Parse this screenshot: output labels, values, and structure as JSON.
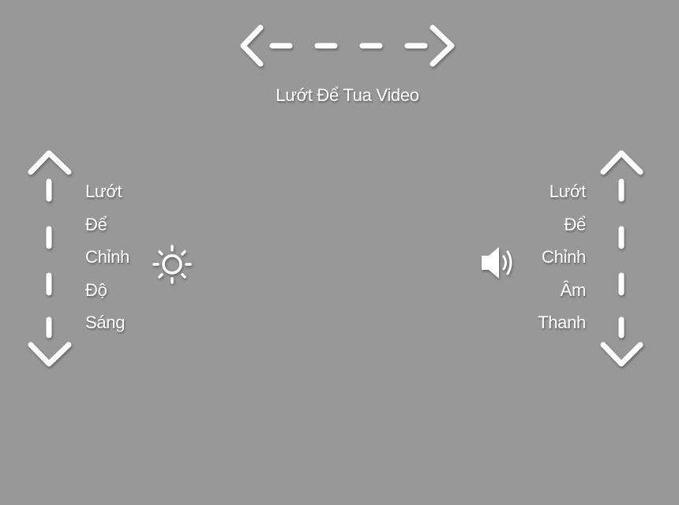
{
  "overlay": {
    "seek_hint": "Lướt Để  Tua Video",
    "brightness_words": [
      "Lướt",
      "Để",
      "Chỉnh",
      "Độ",
      "Sáng"
    ],
    "volume_words": [
      "Lướt",
      "Để",
      "Chỉnh",
      "Âm",
      "Thanh"
    ]
  },
  "icons": {
    "seek": "horizontal-swipe-arrow-icon",
    "brightness_arrow": "vertical-swipe-arrow-icon",
    "brightness": "sun-icon",
    "volume_arrow": "vertical-swipe-arrow-icon",
    "volume": "speaker-icon"
  },
  "colors": {
    "background": "#989898",
    "foreground": "#ffffff"
  }
}
